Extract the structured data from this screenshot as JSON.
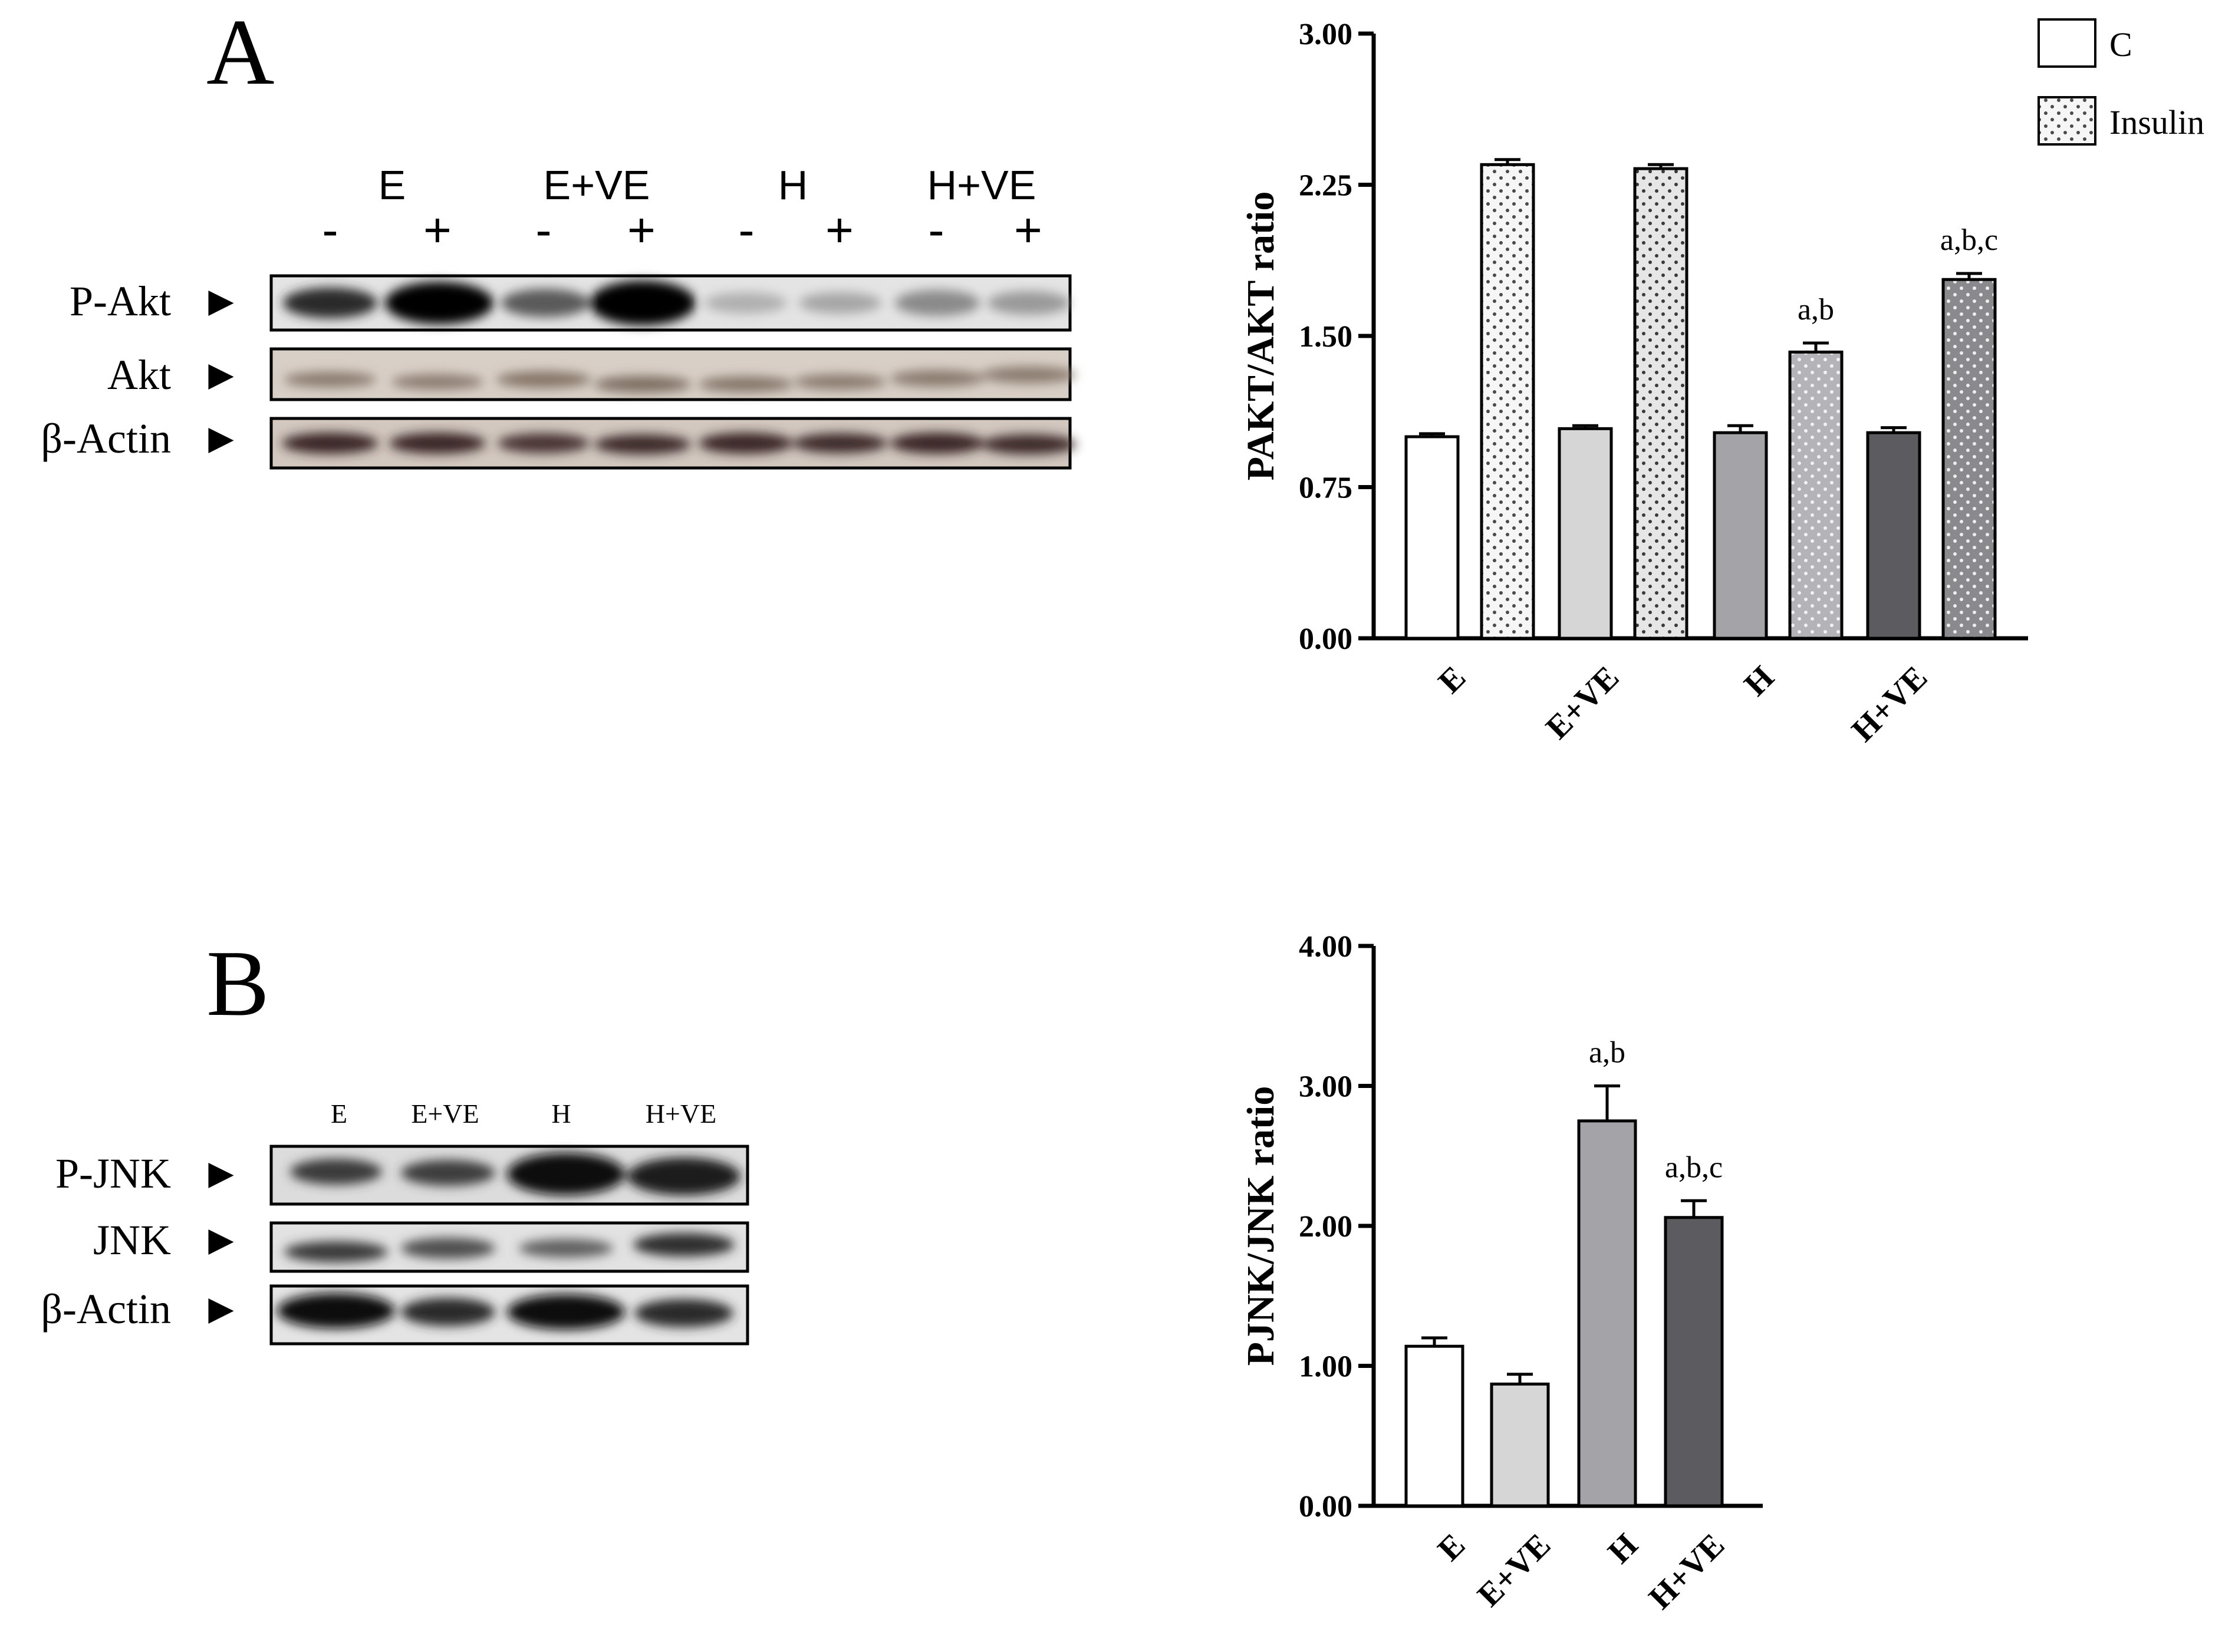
{
  "panels": {
    "a_letter": "A",
    "b_letter": "B"
  },
  "blot_a": {
    "groups": [
      "E",
      "E+VE",
      "H",
      "H+VE"
    ],
    "signs": [
      "-",
      "+",
      "-",
      "+",
      "-",
      "+",
      "-",
      "+"
    ],
    "rows": [
      "P-Akt",
      "Akt",
      "β-Actin"
    ],
    "arrow": "►"
  },
  "blot_b": {
    "groups": [
      "E",
      "E+VE",
      "H",
      "H+VE"
    ],
    "rows": [
      "P-JNK",
      "JNK",
      "β-Actin"
    ],
    "arrow": "►"
  },
  "chart_data": [
    {
      "type": "bar",
      "ylabel": "PAKT/AKT ratio",
      "ylim": [
        0,
        3
      ],
      "yticks": [
        "0.00",
        "0.75",
        "1.50",
        "2.25",
        "3.00"
      ],
      "categories": [
        "E",
        "E+VE",
        "H",
        "H+VE"
      ],
      "series": [
        {
          "name": "C",
          "values": [
            1.0,
            1.04,
            1.02,
            1.02
          ],
          "errors": [
            0.015,
            0.015,
            0.035,
            0.025
          ]
        },
        {
          "name": "Insulin",
          "values": [
            2.35,
            2.33,
            1.42,
            1.78
          ],
          "errors": [
            0.025,
            0.02,
            0.045,
            0.03
          ]
        }
      ],
      "annotations": [
        {
          "category": "H",
          "series": "Insulin",
          "text": "a,b"
        },
        {
          "category": "H+VE",
          "series": "Insulin",
          "text": "a,b,c"
        }
      ],
      "legend": "top-right",
      "grid": false
    },
    {
      "type": "bar",
      "ylabel": "PJNK/JNK ratio",
      "ylim": [
        0,
        4
      ],
      "yticks": [
        "0.00",
        "1.00",
        "2.00",
        "3.00",
        "4.00"
      ],
      "categories": [
        "E",
        "E+VE",
        "H",
        "H+VE"
      ],
      "values": [
        1.14,
        0.87,
        2.75,
        2.06
      ],
      "errors": [
        0.06,
        0.07,
        0.25,
        0.12
      ],
      "annotations": [
        {
          "category": "H",
          "text": "a,b"
        },
        {
          "category": "H+VE",
          "text": "a,b,c"
        }
      ],
      "grid": false
    }
  ],
  "colors": {
    "group_fills": [
      "#ffffff",
      "#d6d6d6",
      "#a4a4a8",
      "#5c5c60"
    ],
    "insulin_fills": [
      "#f2f2f2",
      "#e4e4e4",
      "#b8b8bc",
      "#8a8a8e"
    ]
  }
}
